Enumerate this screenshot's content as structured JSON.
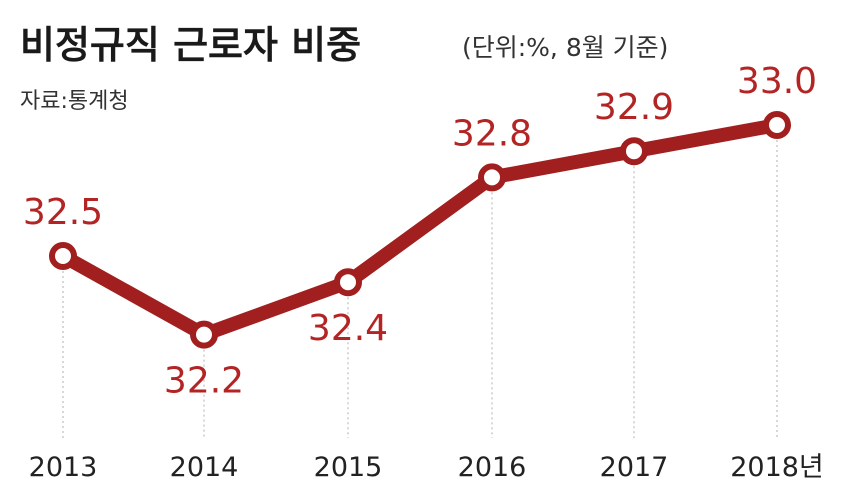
{
  "header": {
    "title": "비정규직 근로자 비중",
    "unit": "(단위:%, 8월 기준)",
    "source": "자료:통계청"
  },
  "colors": {
    "line": "#a11f1f",
    "label": "#b32424",
    "guide": "#bdbdbd"
  },
  "chart_data": {
    "type": "line",
    "title": "비정규직 근로자 비중",
    "categories": [
      "2013",
      "2014",
      "2015",
      "2016",
      "2017",
      "2018년"
    ],
    "series": [
      {
        "values": [
          32.5,
          32.2,
          32.4,
          32.8,
          32.9,
          33.0
        ]
      }
    ],
    "value_labels": [
      "32.5",
      "32.2",
      "32.4",
      "32.8",
      "32.9",
      "33.0"
    ],
    "ylim": [
      31.8,
      33.3
    ],
    "grid": false,
    "legend": "none"
  }
}
